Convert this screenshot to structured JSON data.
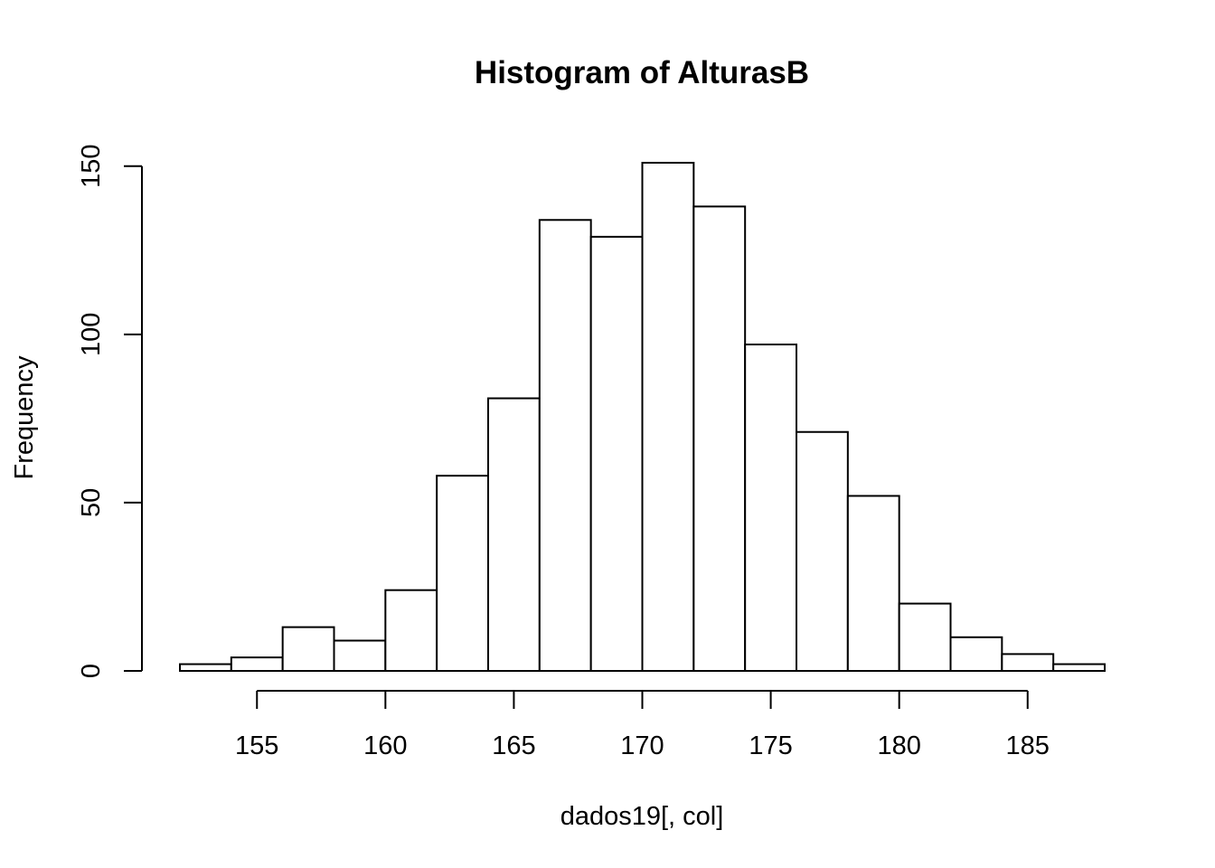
{
  "chart_data": {
    "type": "bar",
    "title": "Histogram of AlturasB",
    "xlabel": "dados19[, col]",
    "ylabel": "Frequency",
    "bin_edges": [
      152,
      154,
      156,
      158,
      160,
      162,
      164,
      166,
      168,
      170,
      172,
      174,
      176,
      178,
      180,
      182,
      184,
      186,
      188
    ],
    "values": [
      2,
      4,
      13,
      9,
      24,
      58,
      81,
      134,
      129,
      151,
      138,
      97,
      71,
      52,
      20,
      10,
      5,
      2
    ],
    "xlim": [
      152,
      188
    ],
    "ylim": [
      0,
      151
    ],
    "x_ticks": [
      155,
      160,
      165,
      170,
      175,
      180,
      185
    ],
    "y_ticks": [
      0,
      50,
      100,
      150
    ],
    "x_tick_labels": [
      "155",
      "160",
      "165",
      "170",
      "175",
      "180",
      "185"
    ],
    "y_tick_labels": [
      "0",
      "50",
      "100",
      "150"
    ],
    "grid": false,
    "legend": "none"
  }
}
